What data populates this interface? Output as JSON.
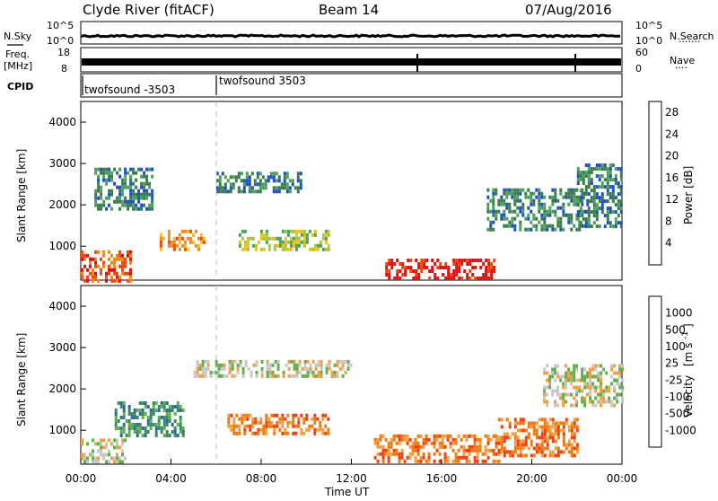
{
  "header": {
    "station": "Clyde River (fitACF)",
    "beam": "Beam 14",
    "date": "07/Aug/2016"
  },
  "noise_panel": {
    "left_label": "N.Sky",
    "right_label": "N.Search",
    "left_ticks": [
      "10^5",
      "10^0"
    ],
    "right_ticks": [
      "10^5",
      "10^0"
    ]
  },
  "freq_panel": {
    "left_label_top": "Freq.",
    "left_label_unit": "[MHz]",
    "right_label": "Nave",
    "left_ticks": [
      "18",
      "8"
    ],
    "right_ticks": [
      "60",
      "0"
    ]
  },
  "cpid_panel": {
    "label": "CPID",
    "segments": [
      {
        "name": "twofsound -3503",
        "start_hour": 0
      },
      {
        "name": "twofsound 3503",
        "start_hour": 6
      }
    ]
  },
  "chart_data": [
    {
      "type": "heatmap",
      "title": "Power",
      "ylabel": "Slant Range [km]",
      "yticks": [
        "1000",
        "2000",
        "3000",
        "4000"
      ],
      "ylim": [
        180,
        4500
      ],
      "xlim": [
        0,
        24
      ],
      "colorbar": {
        "label": "Power [dB]",
        "ticks": [
          "4",
          "8",
          "12",
          "16",
          "20",
          "24",
          "28"
        ],
        "colors": [
          "#1030f0",
          "#2050c0",
          "#3a7c4a",
          "#4ca060",
          "#a8c83a",
          "#f0c020",
          "#f08a20",
          "#f04a10",
          "#e01010"
        ],
        "range": [
          0,
          30
        ]
      },
      "regions": [
        {
          "t0": 0.0,
          "t1": 2.2,
          "r0": 200,
          "r1": 900,
          "level": 7
        },
        {
          "t0": 0.6,
          "t1": 3.2,
          "r0": 1900,
          "r1": 2900,
          "level": 2
        },
        {
          "t0": 3.5,
          "t1": 5.5,
          "r0": 900,
          "r1": 1400,
          "level": 6
        },
        {
          "t0": 6.0,
          "t1": 9.8,
          "r0": 2300,
          "r1": 2800,
          "level": 2
        },
        {
          "t0": 7.0,
          "t1": 11.0,
          "r0": 900,
          "r1": 1400,
          "level": 4
        },
        {
          "t0": 13.5,
          "t1": 18.3,
          "r0": 200,
          "r1": 700,
          "level": 8
        },
        {
          "t0": 18.0,
          "t1": 22.5,
          "r0": 1400,
          "r1": 2400,
          "level": 2
        },
        {
          "t0": 22.0,
          "t1": 24.0,
          "r0": 1500,
          "r1": 3000,
          "level": 2
        }
      ]
    },
    {
      "type": "heatmap",
      "title": "Velocity",
      "ylabel": "Slant Range [km]",
      "yticks": [
        "1000",
        "2000",
        "3000",
        "4000"
      ],
      "ylim": [
        180,
        4500
      ],
      "xlim": [
        0,
        24
      ],
      "xlabel": "Time UT",
      "xticks": [
        "00:00",
        "04:00",
        "08:00",
        "12:00",
        "16:00",
        "20:00",
        "00:00"
      ],
      "colorbar": {
        "label_main": "Velocity",
        "label_unit": "[m s",
        "label_exp": "-1",
        "label_end": "]",
        "ticks": [
          "1000",
          "500",
          "100",
          "25",
          "-25",
          "-100",
          "-500",
          "-1000"
        ],
        "colors": [
          "#1a3ab0",
          "#2a6aa0",
          "#3a8a6a",
          "#60b050",
          "#c8c8c8",
          "#f0a040",
          "#f07a10",
          "#f04010",
          "#e01010"
        ]
      },
      "regions": [
        {
          "t0": 0.0,
          "t1": 2.0,
          "r0": 200,
          "r1": 800,
          "level": 4
        },
        {
          "t0": 1.5,
          "t1": 4.5,
          "r0": 900,
          "r1": 1700,
          "level": 2
        },
        {
          "t0": 5.0,
          "t1": 12.0,
          "r0": 2300,
          "r1": 2700,
          "level": 4
        },
        {
          "t0": 6.5,
          "t1": 11.0,
          "r0": 900,
          "r1": 1400,
          "level": 6
        },
        {
          "t0": 13.0,
          "t1": 18.5,
          "r0": 250,
          "r1": 900,
          "level": 6
        },
        {
          "t0": 18.5,
          "t1": 22.0,
          "r0": 400,
          "r1": 1300,
          "level": 6
        },
        {
          "t0": 20.5,
          "t1": 24.0,
          "r0": 1600,
          "r1": 2600,
          "level": 4
        }
      ]
    }
  ]
}
